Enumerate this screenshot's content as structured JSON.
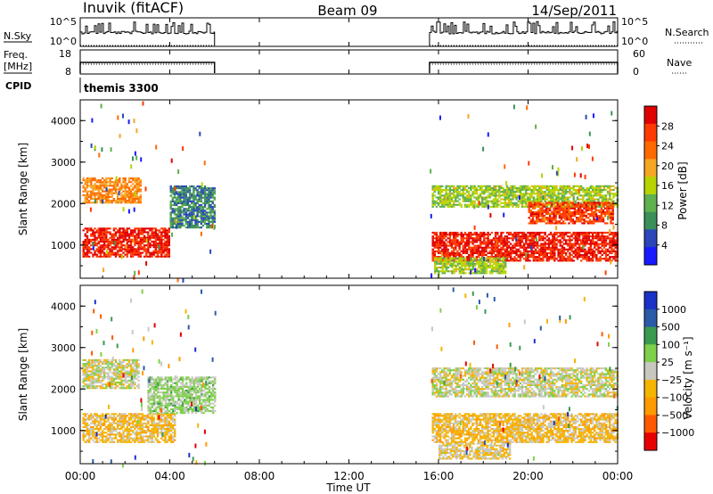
{
  "header": {
    "station": "Inuvik (fitACF)",
    "beam": "Beam 09",
    "date": "14/Sep/2011"
  },
  "panels": {
    "nsky": {
      "left_label": "N.Sky",
      "left_ticks": [
        "10^5",
        "10^0"
      ],
      "right_ticks": [
        "10^5",
        "10^0"
      ],
      "right_label": "N.Search",
      "right_label_style": "dotted"
    },
    "freq": {
      "left_label_top": "Freq.",
      "left_label_unit": "[MHz]",
      "left_ticks": [
        "18",
        "8"
      ],
      "right_ticks": [
        "60",
        "0"
      ],
      "right_label": "Nave",
      "right_label_style": "dotted"
    },
    "cpid": {
      "label": "CPID",
      "value": "themis 3300"
    }
  },
  "x_axis": {
    "label": "Time UT",
    "tick_labels": [
      "00:00",
      "04:00",
      "08:00",
      "12:00",
      "16:00",
      "20:00",
      "00:00"
    ]
  },
  "colors": {
    "power_scale": [
      "#1a1aff",
      "#2a46b8",
      "#3a8f5a",
      "#5fb04e",
      "#b8d400",
      "#f5a623",
      "#ff6a00",
      "#ff3a00",
      "#e00000"
    ],
    "velocity_scale": [
      "#e80000",
      "#ff5a00",
      "#ff9a00",
      "#f5b400",
      "#c8c8c0",
      "#7ed04a",
      "#3a9a50",
      "#2a5aa8",
      "#1a32c8"
    ]
  },
  "chart_data": [
    {
      "type": "heatmap",
      "name": "power",
      "ylabel": "Slant Range [km]",
      "y_tick_labels": [
        "1000",
        "2000",
        "3000",
        "4000"
      ],
      "ylim": [
        200,
        4500
      ],
      "xlim_hours": [
        0,
        24
      ],
      "data_coverage_hours": [
        [
          0.0,
          6.0
        ],
        [
          15.6,
          24.0
        ]
      ],
      "colorbar": {
        "label": "Power [dB]",
        "tick_labels": [
          "28",
          "24",
          "20",
          "16",
          "12",
          "8",
          "4"
        ],
        "range": [
          0,
          30
        ]
      },
      "bands": [
        {
          "t0": 0.1,
          "t1": 2.7,
          "r0": 2000,
          "r1": 2600,
          "value": 20
        },
        {
          "t0": 0.1,
          "t1": 4.0,
          "r0": 700,
          "r1": 1400,
          "value": 27
        },
        {
          "t0": 4.0,
          "t1": 6.0,
          "r0": 1400,
          "r1": 2400,
          "value": 8
        },
        {
          "t0": 15.7,
          "t1": 24.0,
          "r0": 600,
          "r1": 1300,
          "value": 27
        },
        {
          "t0": 15.7,
          "t1": 24.0,
          "r0": 1900,
          "r1": 2400,
          "value": 14
        },
        {
          "t0": 20.0,
          "t1": 23.8,
          "r0": 1500,
          "r1": 2000,
          "value": 25
        },
        {
          "t0": 15.8,
          "t1": 19.0,
          "r0": 300,
          "r1": 700,
          "value": 14
        }
      ]
    },
    {
      "type": "heatmap",
      "name": "velocity",
      "ylabel": "Slant Range [km]",
      "y_tick_labels": [
        "1000",
        "2000",
        "3000",
        "4000"
      ],
      "ylim": [
        200,
        4500
      ],
      "xlim_hours": [
        0,
        24
      ],
      "data_coverage_hours": [
        [
          0.0,
          6.0
        ],
        [
          15.6,
          24.0
        ]
      ],
      "colorbar": {
        "label": "Velocity [m s⁻¹]",
        "tick_labels": [
          "1000",
          "500",
          "100",
          "25",
          "−25",
          "−100",
          "−500",
          "−1000"
        ],
        "range": [
          -1000,
          1000
        ]
      },
      "bands": [
        {
          "t0": 0.1,
          "t1": 2.6,
          "r0": 2000,
          "r1": 2700,
          "value": 0
        },
        {
          "t0": 0.1,
          "t1": 4.2,
          "r0": 700,
          "r1": 1400,
          "value": -200
        },
        {
          "t0": 3.0,
          "t1": 6.0,
          "r0": 1400,
          "r1": 2300,
          "value": 150
        },
        {
          "t0": 15.7,
          "t1": 24.0,
          "r0": 1800,
          "r1": 2500,
          "value": 0
        },
        {
          "t0": 15.7,
          "t1": 24.0,
          "r0": 700,
          "r1": 1400,
          "value": -200
        },
        {
          "t0": 16.0,
          "t1": 19.2,
          "r0": 300,
          "r1": 700,
          "value": -100
        }
      ]
    }
  ]
}
